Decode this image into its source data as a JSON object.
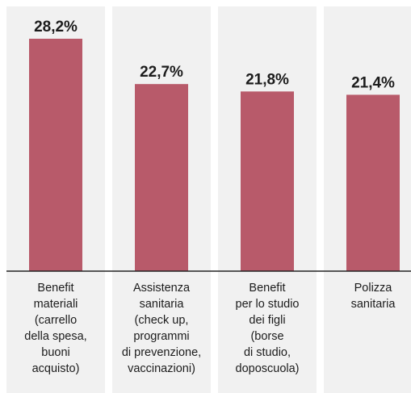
{
  "chart_data": {
    "type": "bar",
    "categories": [
      [
        "Benefit",
        "materiali",
        "(carrello",
        "della spesa,",
        "buoni",
        "acquisto)"
      ],
      [
        "Assistenza",
        "sanitaria",
        "(check up,",
        "programmi",
        "di prevenzione,",
        "vaccinazioni)"
      ],
      [
        "Benefit",
        "per lo studio",
        "dei figli",
        "(borse",
        "di studio,",
        "doposcuola)"
      ],
      [
        "Polizza",
        "sanitaria"
      ]
    ],
    "values": [
      28.2,
      22.7,
      21.8,
      21.4
    ],
    "value_labels": [
      "28,2%",
      "22,7%",
      "21,8%",
      "21,4%"
    ],
    "ylim": [
      0,
      30
    ],
    "grid": false,
    "colors": {
      "bar": "#b85a6a",
      "column_background": "#f1f1f1"
    }
  }
}
